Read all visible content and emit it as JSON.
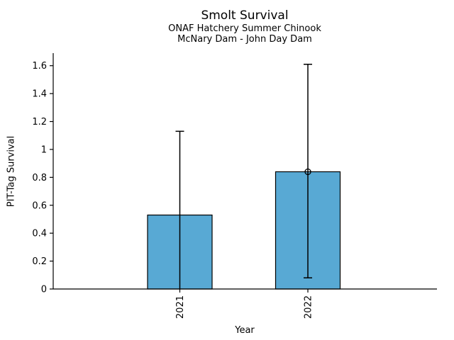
{
  "chart_data": {
    "type": "bar",
    "title": "Smolt Survival",
    "subtitle_lines": [
      "ONAF Hatchery Summer Chinook",
      "McNary Dam - John Day Dam"
    ],
    "xlabel": "Year",
    "ylabel": "PIT-Tag Survival",
    "categories": [
      "2021",
      "2022"
    ],
    "values": [
      0.53,
      0.84
    ],
    "error_high": [
      1.13,
      1.61
    ],
    "error_low": [
      null,
      0.08
    ],
    "markers": [
      null,
      0.84
    ],
    "ylim": [
      0,
      1.69
    ],
    "yticks": [
      0,
      0.2,
      0.4,
      0.6,
      0.8,
      1,
      1.2,
      1.4,
      1.6
    ],
    "ytick_labels": [
      "0",
      "0.2",
      "0.4",
      "0.6",
      "0.8",
      "1",
      "1.2",
      "1.4",
      "1.6"
    ],
    "xtick_rotation": 90,
    "bar_color": "#58a9d4",
    "edge_color": "#000000",
    "error_color": "#000000",
    "grid": false,
    "legend": null
  }
}
